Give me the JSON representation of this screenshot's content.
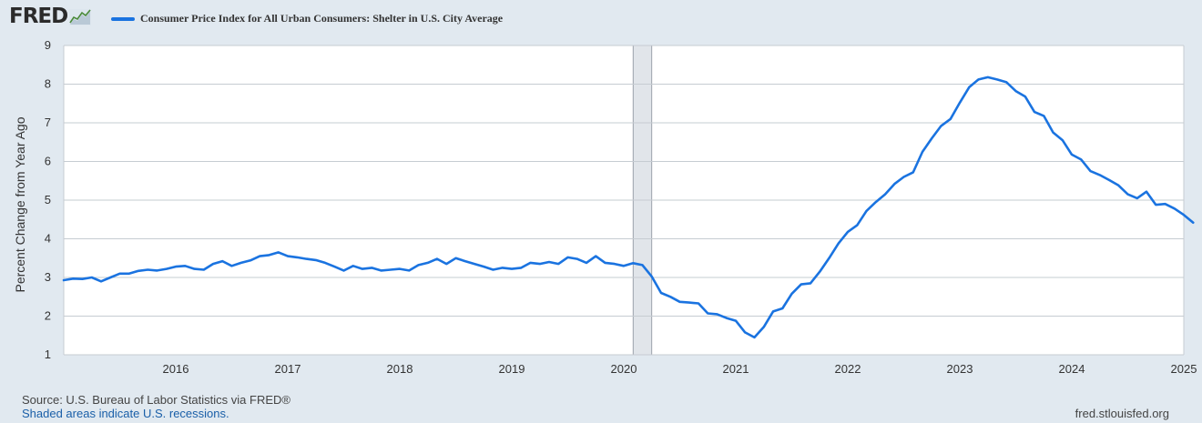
{
  "logo": {
    "text": "FRED",
    "icon": "fred-chart-icon"
  },
  "legend": {
    "series_label": "Consumer Price Index for All Urban Consumers: Shelter in U.S. City Average",
    "color": "#1a73e0"
  },
  "footer": {
    "source": "Source: U.S. Bureau of Labor Statistics via FRED®",
    "recession_note": "Shaded areas indicate U.S. recessions.",
    "site": "fred.stlouisfed.org"
  },
  "chart_data": {
    "type": "line",
    "title": "",
    "xlabel": "",
    "ylabel": "Percent Change from Year Ago",
    "ylim": [
      1,
      9
    ],
    "y_ticks": [
      1,
      2,
      3,
      4,
      5,
      6,
      7,
      8,
      9
    ],
    "x_ticks": [
      "2016",
      "2017",
      "2018",
      "2019",
      "2020",
      "2021",
      "2022",
      "2023",
      "2024",
      "2025"
    ],
    "xlim": [
      "2015-01",
      "2025-01"
    ],
    "grid": true,
    "recessions": [
      {
        "start": "2020-02",
        "end": "2020-04"
      }
    ],
    "series": [
      {
        "name": "Consumer Price Index for All Urban Consumers: Shelter in U.S. City Average",
        "color": "#1a73e0",
        "start": "2015-01",
        "frequency": "monthly",
        "values": [
          2.93,
          2.97,
          2.96,
          3.0,
          2.9,
          3.0,
          3.1,
          3.1,
          3.17,
          3.2,
          3.18,
          3.22,
          3.28,
          3.3,
          3.22,
          3.2,
          3.35,
          3.42,
          3.3,
          3.38,
          3.44,
          3.55,
          3.58,
          3.65,
          3.55,
          3.52,
          3.48,
          3.45,
          3.38,
          3.28,
          3.18,
          3.3,
          3.22,
          3.25,
          3.18,
          3.2,
          3.22,
          3.18,
          3.32,
          3.38,
          3.48,
          3.35,
          3.5,
          3.42,
          3.35,
          3.28,
          3.2,
          3.25,
          3.22,
          3.25,
          3.38,
          3.35,
          3.4,
          3.35,
          3.52,
          3.48,
          3.38,
          3.55,
          3.38,
          3.35,
          3.3,
          3.37,
          3.32,
          3.02,
          2.6,
          2.5,
          2.37,
          2.35,
          2.33,
          2.07,
          2.05,
          1.95,
          1.88,
          1.58,
          1.45,
          1.72,
          2.12,
          2.2,
          2.58,
          2.82,
          2.85,
          3.15,
          3.5,
          3.88,
          4.18,
          4.35,
          4.72,
          4.95,
          5.15,
          5.42,
          5.6,
          5.72,
          6.25,
          6.6,
          6.92,
          7.1,
          7.52,
          7.92,
          8.12,
          8.18,
          8.12,
          8.05,
          7.82,
          7.68,
          7.28,
          7.18,
          6.75,
          6.55,
          6.18,
          6.05,
          5.75,
          5.65,
          5.52,
          5.38,
          5.15,
          5.05,
          5.22,
          4.88,
          4.9,
          4.78,
          4.62,
          4.42
        ]
      }
    ]
  }
}
